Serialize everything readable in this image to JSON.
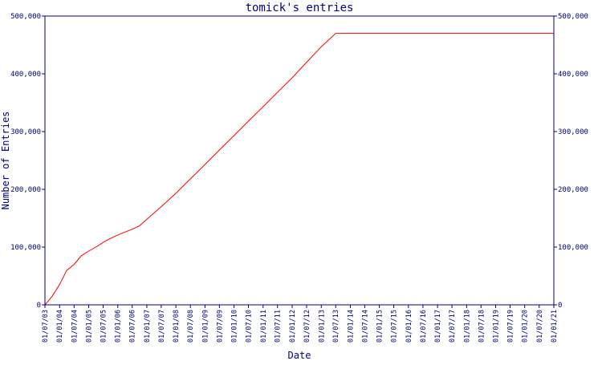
{
  "chart_data": {
    "type": "line",
    "title": "tomick's entries",
    "xlabel": "Date",
    "ylabel": "Number of Entries",
    "ylim": [
      0,
      500000
    ],
    "y_ticks": [
      0,
      100000,
      200000,
      300000,
      400000,
      500000
    ],
    "y_tick_labels": [
      "0",
      "100,000",
      "200,000",
      "300,000",
      "400,000",
      "500,000"
    ],
    "right_axis_mirrors_left": true,
    "grid": false,
    "x_tick_labels": [
      "01/07/03",
      "01/01/04",
      "01/07/04",
      "01/01/05",
      "01/07/05",
      "01/01/06",
      "01/07/06",
      "01/01/07",
      "01/07/07",
      "01/01/08",
      "01/07/08",
      "01/01/09",
      "01/07/09",
      "01/01/10",
      "01/07/10",
      "01/01/11",
      "01/07/11",
      "01/01/12",
      "01/07/12",
      "01/01/13",
      "01/07/13",
      "01/01/14",
      "01/07/14",
      "01/01/15",
      "01/07/15",
      "01/01/16",
      "01/07/16",
      "01/01/17",
      "01/07/17",
      "01/01/18",
      "01/07/18",
      "01/01/19",
      "01/07/19",
      "01/01/20",
      "01/07/20",
      "01/01/21"
    ],
    "series": [
      {
        "color": "#ff0000",
        "points": [
          [
            "2003-07-01",
            0
          ],
          [
            "2003-10-01",
            15000
          ],
          [
            "2004-01-01",
            35000
          ],
          [
            "2004-04-01",
            60000
          ],
          [
            "2004-07-01",
            70000
          ],
          [
            "2004-10-01",
            85000
          ],
          [
            "2005-01-01",
            93000
          ],
          [
            "2005-04-01",
            100000
          ],
          [
            "2005-07-01",
            108000
          ],
          [
            "2005-10-01",
            115000
          ],
          [
            "2006-01-01",
            121000
          ],
          [
            "2006-04-01",
            126000
          ],
          [
            "2006-07-01",
            131000
          ],
          [
            "2006-10-01",
            137000
          ],
          [
            "2007-01-01",
            148000
          ],
          [
            "2007-07-01",
            170000
          ],
          [
            "2008-01-01",
            193000
          ],
          [
            "2008-07-01",
            218000
          ],
          [
            "2009-01-01",
            243000
          ],
          [
            "2009-07-01",
            268000
          ],
          [
            "2010-01-01",
            293000
          ],
          [
            "2010-07-01",
            318000
          ],
          [
            "2011-01-01",
            343000
          ],
          [
            "2011-07-01",
            368000
          ],
          [
            "2012-01-01",
            393000
          ],
          [
            "2012-07-01",
            420000
          ],
          [
            "2013-01-01",
            447000
          ],
          [
            "2013-07-01",
            470000
          ],
          [
            "2021-01-01",
            470000
          ]
        ]
      }
    ]
  }
}
